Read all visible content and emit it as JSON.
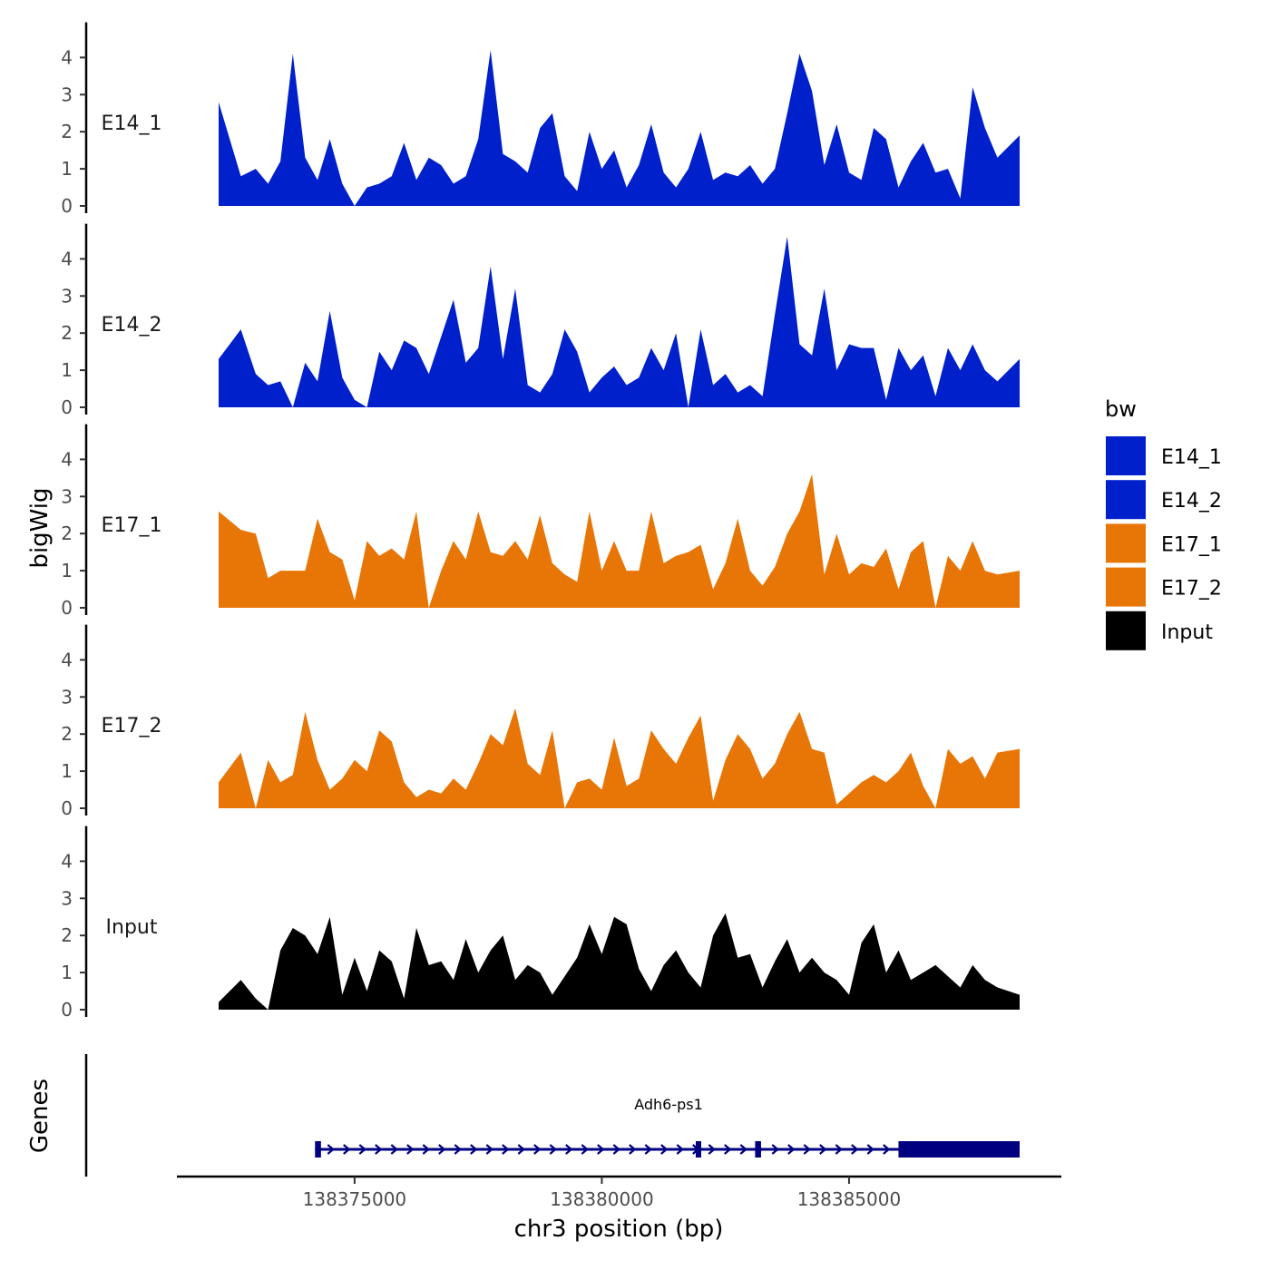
{
  "chart_data": {
    "type": "area",
    "title": "",
    "ylabel": "bigWig",
    "xlabel": "chr3 position (bp)",
    "xlim": [
      138372250,
      138388450
    ],
    "ylim": [
      0,
      4.8
    ],
    "y_ticks": [
      "0",
      "1",
      "2",
      "3",
      "4"
    ],
    "x_ticks": [
      {
        "value": 138375000,
        "label": "138375000"
      },
      {
        "value": 138380000,
        "label": "138380000"
      },
      {
        "value": 138385000,
        "label": "138385000"
      }
    ],
    "legend": {
      "title": "bw",
      "placement": "right",
      "entries": [
        {
          "label": "E14_1",
          "color": "#0020CC"
        },
        {
          "label": "E14_2",
          "color": "#0020CC"
        },
        {
          "label": "E17_1",
          "color": "#E87606"
        },
        {
          "label": "E17_2",
          "color": "#E87606"
        },
        {
          "label": "Input",
          "color": "#000000"
        }
      ]
    },
    "x": [
      138372250,
      138372700,
      138373000,
      138373250,
      138373500,
      138373750,
      138374000,
      138374250,
      138374500,
      138374750,
      138375000,
      138375250,
      138375500,
      138375750,
      138376000,
      138376250,
      138376500,
      138376750,
      138377000,
      138377250,
      138377500,
      138377750,
      138378000,
      138378250,
      138378500,
      138378750,
      138379000,
      138379250,
      138379500,
      138379750,
      138380000,
      138380250,
      138380500,
      138380750,
      138381000,
      138381250,
      138381500,
      138381750,
      138382000,
      138382250,
      138382500,
      138382750,
      138383000,
      138383250,
      138383500,
      138383750,
      138384000,
      138384250,
      138384500,
      138384750,
      138385000,
      138385250,
      138385500,
      138385750,
      138386000,
      138386250,
      138386500,
      138386750,
      138387000,
      138387250,
      138387500,
      138387750,
      138388000,
      138388450
    ],
    "series": [
      {
        "name": "E14_1",
        "color": "#0020CC",
        "values": [
          2.8,
          0.8,
          1.0,
          0.6,
          1.2,
          4.1,
          1.3,
          0.7,
          1.8,
          0.6,
          0.0,
          0.5,
          0.6,
          0.8,
          1.7,
          0.7,
          1.3,
          1.1,
          0.6,
          0.8,
          1.8,
          4.2,
          1.4,
          1.2,
          0.9,
          2.1,
          2.5,
          0.8,
          0.4,
          2.0,
          1.0,
          1.5,
          0.5,
          1.1,
          2.2,
          0.9,
          0.5,
          1.0,
          2.0,
          0.7,
          0.9,
          0.8,
          1.1,
          0.6,
          1.0,
          2.5,
          4.1,
          3.1,
          1.1,
          2.2,
          0.9,
          0.7,
          2.1,
          1.8,
          0.5,
          1.2,
          1.7,
          0.9,
          1.0,
          0.2,
          3.2,
          2.1,
          1.3,
          1.9
        ]
      },
      {
        "name": "E14_2",
        "color": "#0020CC",
        "values": [
          1.3,
          2.1,
          0.9,
          0.6,
          0.7,
          0.0,
          1.2,
          0.7,
          2.6,
          0.8,
          0.2,
          0.0,
          1.5,
          1.0,
          1.8,
          1.6,
          0.9,
          1.9,
          2.9,
          1.2,
          1.6,
          3.8,
          1.3,
          3.2,
          0.6,
          0.4,
          0.9,
          2.1,
          1.5,
          0.4,
          0.8,
          1.1,
          0.6,
          0.8,
          1.6,
          1.0,
          2.0,
          0.0,
          2.1,
          0.6,
          0.9,
          0.4,
          0.6,
          0.3,
          2.5,
          4.6,
          1.7,
          1.4,
          3.2,
          1.0,
          1.7,
          1.6,
          1.6,
          0.2,
          1.6,
          1.0,
          1.4,
          0.3,
          1.6,
          1.0,
          1.7,
          1.0,
          0.7,
          1.3
        ]
      },
      {
        "name": "E17_1",
        "color": "#E87606",
        "values": [
          2.6,
          2.1,
          2.0,
          0.8,
          1.0,
          1.0,
          1.0,
          2.4,
          1.5,
          1.3,
          0.2,
          1.8,
          1.4,
          1.6,
          1.3,
          2.6,
          0.0,
          1.0,
          1.8,
          1.3,
          2.6,
          1.5,
          1.4,
          1.8,
          1.3,
          2.5,
          1.2,
          0.9,
          0.7,
          2.6,
          1.0,
          1.8,
          1.0,
          1.0,
          2.6,
          1.2,
          1.4,
          1.5,
          1.7,
          0.5,
          1.2,
          2.4,
          1.0,
          0.6,
          1.1,
          2.0,
          2.6,
          3.6,
          0.9,
          2.0,
          0.9,
          1.2,
          1.1,
          1.6,
          0.5,
          1.5,
          1.8,
          0.0,
          1.4,
          1.0,
          1.8,
          1.0,
          0.9,
          1.0
        ]
      },
      {
        "name": "E17_2",
        "color": "#E87606",
        "values": [
          0.7,
          1.5,
          0.0,
          1.3,
          0.7,
          0.9,
          2.6,
          1.3,
          0.5,
          0.8,
          1.3,
          1.0,
          2.1,
          1.8,
          0.7,
          0.3,
          0.5,
          0.4,
          0.8,
          0.5,
          1.2,
          2.0,
          1.7,
          2.7,
          1.2,
          0.9,
          2.1,
          0.0,
          0.7,
          0.8,
          0.5,
          1.9,
          0.6,
          0.8,
          2.1,
          1.6,
          1.2,
          1.9,
          2.5,
          0.2,
          1.3,
          2.0,
          1.6,
          0.8,
          1.2,
          2.0,
          2.6,
          1.6,
          1.5,
          0.1,
          0.4,
          0.7,
          0.9,
          0.7,
          1.0,
          1.5,
          0.6,
          0.0,
          1.6,
          1.2,
          1.4,
          0.8,
          1.5,
          1.6
        ]
      },
      {
        "name": "Input",
        "color": "#000000",
        "values": [
          0.2,
          0.8,
          0.3,
          0.0,
          1.6,
          2.2,
          2.0,
          1.5,
          2.5,
          0.4,
          1.4,
          0.5,
          1.6,
          1.3,
          0.3,
          2.2,
          1.2,
          1.3,
          0.8,
          1.9,
          1.0,
          1.6,
          2.0,
          0.8,
          1.2,
          1.0,
          0.4,
          0.9,
          1.4,
          2.3,
          1.5,
          2.5,
          2.3,
          1.1,
          0.5,
          1.2,
          1.6,
          1.0,
          0.6,
          2.0,
          2.6,
          1.4,
          1.5,
          0.6,
          1.3,
          1.9,
          1.0,
          1.4,
          1.0,
          0.8,
          0.4,
          1.8,
          2.3,
          1.0,
          1.6,
          0.8,
          1.0,
          1.2,
          0.9,
          0.6,
          1.2,
          0.8,
          0.6,
          0.4
        ]
      }
    ],
    "gene_track": {
      "label": "Genes",
      "gene": {
        "name": "Adh6-ps1",
        "strand": "+",
        "start": 138374200,
        "end": 138388450,
        "exons": [
          [
            138374200,
            138374320
          ],
          [
            138381900,
            138382000
          ],
          [
            138383100,
            138383220
          ],
          [
            138386000,
            138388450
          ]
        ]
      }
    }
  }
}
